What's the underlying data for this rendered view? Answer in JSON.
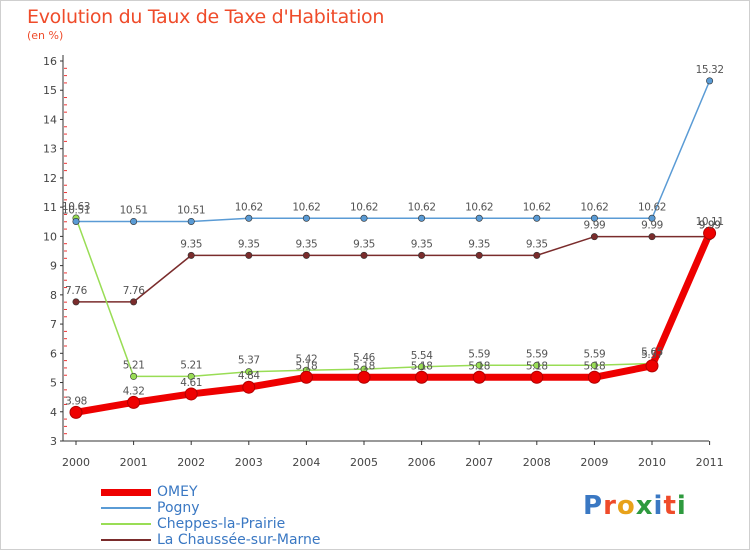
{
  "header": {
    "title": "Evolution du Taux de Taxe d'Habitation",
    "subtitle": "(en %)"
  },
  "logo": {
    "text": "Proxiti",
    "letter_colors": [
      "#3a78c3",
      "#ef4b2a",
      "#e8a21a",
      "#2e9a3e",
      "#3a78c3",
      "#ef4b2a",
      "#2e9a3e"
    ]
  },
  "chart_data": {
    "type": "line",
    "x": [
      "2000",
      "2001",
      "2002",
      "2003",
      "2004",
      "2005",
      "2006",
      "2007",
      "2008",
      "2009",
      "2010",
      "2011"
    ],
    "ylim": [
      3,
      16
    ],
    "yticks": [
      "3",
      "4",
      "5",
      "6",
      "7",
      "8",
      "9",
      "10",
      "11",
      "12",
      "13",
      "14",
      "15",
      "16"
    ],
    "grid": false,
    "legend_position": "bottom-left",
    "series": [
      {
        "name": "OMEY",
        "color": "#ee0000",
        "values": [
          3.98,
          4.32,
          4.61,
          4.84,
          5.18,
          5.18,
          5.18,
          5.18,
          5.18,
          5.18,
          5.57,
          10.11
        ],
        "labels": [
          "3.98",
          "4.32",
          "4.61",
          "4.84",
          "5.18",
          "5.18",
          "5.18",
          "5.18",
          "5.18",
          "5.18",
          "5.57",
          "10.11"
        ]
      },
      {
        "name": "Pogny",
        "color": "#5a9bd5",
        "values": [
          10.51,
          10.51,
          10.51,
          10.62,
          10.62,
          10.62,
          10.62,
          10.62,
          10.62,
          10.62,
          10.62,
          15.32
        ],
        "labels": [
          "10.51",
          "10.51",
          "10.51",
          "10.62",
          "10.62",
          "10.62",
          "10.62",
          "10.62",
          "10.62",
          "10.62",
          "10.62",
          "15.32"
        ]
      },
      {
        "name": "Cheppes-la-Prairie",
        "color": "#99dd55",
        "values": [
          10.63,
          5.21,
          5.21,
          5.37,
          5.42,
          5.46,
          5.54,
          5.59,
          5.59,
          5.59,
          5.65,
          9.99
        ],
        "labels": [
          "10.63",
          "5.21",
          "5.21",
          "5.37",
          "5.42",
          "5.46",
          "5.54",
          "5.59",
          "5.59",
          "5.59",
          "5.65",
          "9.99"
        ]
      },
      {
        "name": "La Chaussée-sur-Marne",
        "color": "#7a2c2c",
        "values": [
          7.76,
          7.76,
          9.35,
          9.35,
          9.35,
          9.35,
          9.35,
          9.35,
          9.35,
          9.99,
          9.99,
          9.99
        ],
        "labels": [
          "7.76",
          "7.76",
          "9.35",
          "9.35",
          "9.35",
          "9.35",
          "9.35",
          "9.35",
          "9.35",
          "9.99",
          "9.99",
          "9.99"
        ]
      }
    ]
  }
}
